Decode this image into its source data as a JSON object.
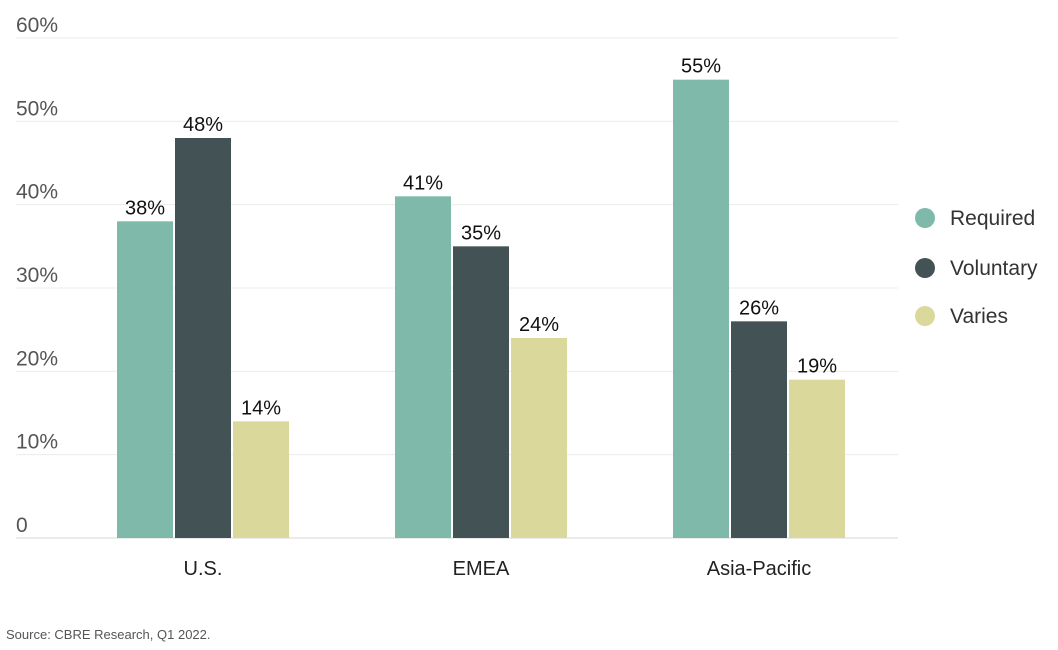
{
  "chart_data": {
    "type": "bar",
    "categories": [
      "U.S.",
      "EMEA",
      "Asia-Pacific"
    ],
    "series": [
      {
        "name": "Required",
        "values": [
          38,
          41,
          55
        ],
        "labels": [
          "38%",
          "41%",
          "55%"
        ],
        "color": "#7fb9a9"
      },
      {
        "name": "Voluntary",
        "values": [
          48,
          35,
          26
        ],
        "labels": [
          "48%",
          "35%",
          "26%"
        ],
        "color": "#435254"
      },
      {
        "name": "Varies",
        "values": [
          14,
          24,
          19
        ],
        "labels": [
          "14%",
          "24%",
          "19%"
        ],
        "color": "#dbd89b"
      }
    ],
    "y_ticks": [
      {
        "value": 0,
        "label": "0"
      },
      {
        "value": 10,
        "label": "10%"
      },
      {
        "value": 20,
        "label": "20%"
      },
      {
        "value": 30,
        "label": "30%"
      },
      {
        "value": 40,
        "label": "40%"
      },
      {
        "value": 50,
        "label": "50%"
      },
      {
        "value": 60,
        "label": "60%"
      }
    ],
    "ylim": [
      0,
      60
    ],
    "grid": true,
    "legend_position": "right"
  },
  "source": "Source: CBRE Research, Q1 2022."
}
